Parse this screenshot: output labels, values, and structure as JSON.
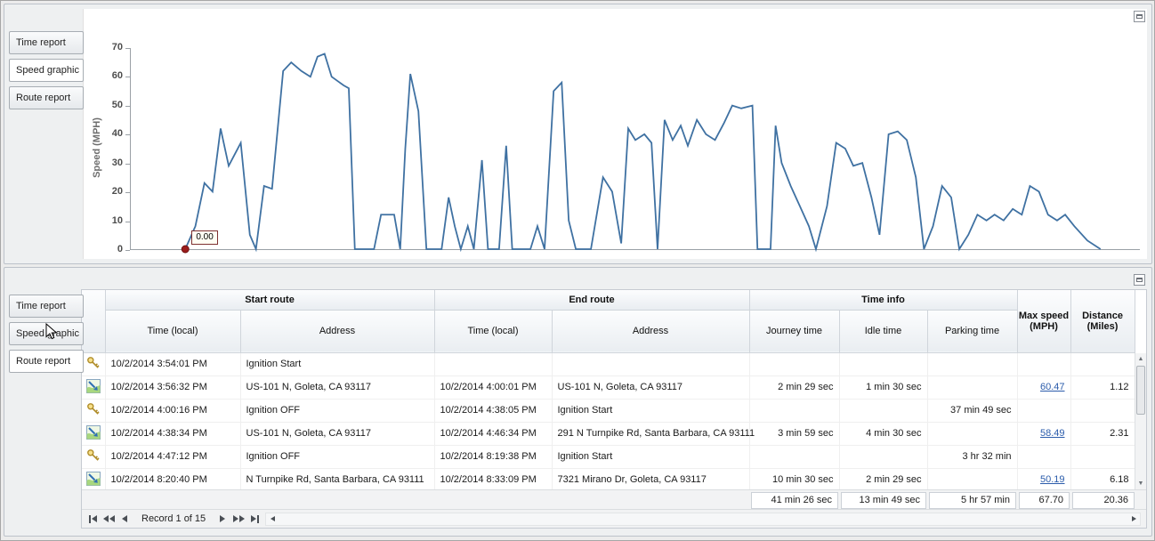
{
  "panels": {
    "top": {
      "tabs": [
        {
          "label": "Time report",
          "selected": false
        },
        {
          "label": "Speed graphic",
          "selected": true
        },
        {
          "label": "Route report",
          "selected": false
        }
      ]
    },
    "bottom": {
      "tabs": [
        {
          "label": "Time report",
          "selected": false
        },
        {
          "label": "Speed graphic",
          "selected": false
        },
        {
          "label": "Route report",
          "selected": true
        }
      ]
    }
  },
  "chart_data": {
    "type": "line",
    "title": "",
    "xlabel": "",
    "ylabel": "Speed (MPH)",
    "ylim": [
      0,
      70
    ],
    "yticks": [
      0,
      10,
      20,
      30,
      40,
      50,
      60,
      70
    ],
    "grid": false,
    "legend": "none",
    "line_color": "#3f71a2",
    "marker": {
      "x_frac": 0.054,
      "value": 0,
      "label": "0.00",
      "color": "#9b1c1c"
    },
    "points": [
      [
        0.054,
        0
      ],
      [
        0.064,
        8
      ],
      [
        0.073,
        23
      ],
      [
        0.081,
        20
      ],
      [
        0.089,
        42
      ],
      [
        0.097,
        29
      ],
      [
        0.103,
        33
      ],
      [
        0.109,
        37
      ],
      [
        0.118,
        5
      ],
      [
        0.124,
        0
      ],
      [
        0.132,
        22
      ],
      [
        0.14,
        21
      ],
      [
        0.151,
        62
      ],
      [
        0.159,
        65
      ],
      [
        0.169,
        62
      ],
      [
        0.178,
        60
      ],
      [
        0.185,
        67
      ],
      [
        0.192,
        68
      ],
      [
        0.199,
        60
      ],
      [
        0.211,
        57
      ],
      [
        0.216,
        56
      ],
      [
        0.222,
        0
      ],
      [
        0.241,
        0
      ],
      [
        0.248,
        12
      ],
      [
        0.261,
        12
      ],
      [
        0.267,
        0
      ],
      [
        0.272,
        35
      ],
      [
        0.277,
        61
      ],
      [
        0.285,
        48
      ],
      [
        0.293,
        0
      ],
      [
        0.308,
        0
      ],
      [
        0.315,
        18
      ],
      [
        0.321,
        8
      ],
      [
        0.327,
        0
      ],
      [
        0.334,
        8
      ],
      [
        0.34,
        0
      ],
      [
        0.348,
        31
      ],
      [
        0.354,
        0
      ],
      [
        0.365,
        0
      ],
      [
        0.372,
        36
      ],
      [
        0.378,
        0
      ],
      [
        0.396,
        0
      ],
      [
        0.403,
        8
      ],
      [
        0.41,
        0
      ],
      [
        0.419,
        55
      ],
      [
        0.427,
        58
      ],
      [
        0.434,
        10
      ],
      [
        0.441,
        0
      ],
      [
        0.456,
        0
      ],
      [
        0.468,
        25
      ],
      [
        0.477,
        20
      ],
      [
        0.486,
        2
      ],
      [
        0.493,
        42
      ],
      [
        0.5,
        38
      ],
      [
        0.509,
        40
      ],
      [
        0.516,
        37
      ],
      [
        0.522,
        0
      ],
      [
        0.529,
        45
      ],
      [
        0.537,
        38
      ],
      [
        0.545,
        43
      ],
      [
        0.552,
        36
      ],
      [
        0.561,
        45
      ],
      [
        0.57,
        40
      ],
      [
        0.579,
        38
      ],
      [
        0.588,
        44
      ],
      [
        0.596,
        50
      ],
      [
        0.605,
        49
      ],
      [
        0.616,
        50
      ],
      [
        0.621,
        0
      ],
      [
        0.634,
        0
      ],
      [
        0.639,
        43
      ],
      [
        0.645,
        30
      ],
      [
        0.654,
        22
      ],
      [
        0.663,
        15
      ],
      [
        0.672,
        8
      ],
      [
        0.679,
        0
      ],
      [
        0.69,
        15
      ],
      [
        0.699,
        37
      ],
      [
        0.708,
        35
      ],
      [
        0.716,
        29
      ],
      [
        0.725,
        30
      ],
      [
        0.734,
        18
      ],
      [
        0.742,
        5
      ],
      [
        0.751,
        40
      ],
      [
        0.76,
        41
      ],
      [
        0.769,
        38
      ],
      [
        0.778,
        25
      ],
      [
        0.786,
        0
      ],
      [
        0.795,
        8
      ],
      [
        0.804,
        22
      ],
      [
        0.813,
        18
      ],
      [
        0.821,
        0
      ],
      [
        0.83,
        5
      ],
      [
        0.839,
        12
      ],
      [
        0.848,
        10
      ],
      [
        0.856,
        12
      ],
      [
        0.865,
        10
      ],
      [
        0.874,
        14
      ],
      [
        0.883,
        12
      ],
      [
        0.891,
        22
      ],
      [
        0.9,
        20
      ],
      [
        0.909,
        12
      ],
      [
        0.918,
        10
      ],
      [
        0.926,
        12
      ],
      [
        0.935,
        8
      ],
      [
        0.948,
        3
      ],
      [
        0.961,
        0
      ]
    ]
  },
  "grid": {
    "groups": [
      {
        "label": "Start route",
        "span": 2
      },
      {
        "label": "End route",
        "span": 2
      },
      {
        "label": "Time info",
        "span": 3
      }
    ],
    "columns": [
      {
        "label": "Time (local)"
      },
      {
        "label": "Address"
      },
      {
        "label": "Time (local)"
      },
      {
        "label": "Address"
      },
      {
        "label": "Journey time"
      },
      {
        "label": "Idle time"
      },
      {
        "label": "Parking time"
      },
      {
        "label": "Max speed (MPH)"
      },
      {
        "label": "Distance (Miles)"
      }
    ],
    "rows": [
      {
        "icon": "ignition-key-icon",
        "start_time": "10/2/2014 3:54:01 PM",
        "start_address": "Ignition Start",
        "end_time": "",
        "end_address": "",
        "journey_time": "",
        "idle_time": "",
        "parking_time": "",
        "max_speed": "",
        "distance": ""
      },
      {
        "icon": "route-icon",
        "start_time": "10/2/2014 3:56:32 PM",
        "start_address": "US-101 N, Goleta, CA 93117",
        "end_time": "10/2/2014 4:00:01 PM",
        "end_address": "US-101 N, Goleta, CA 93117",
        "journey_time": "2 min 29 sec",
        "idle_time": "1 min 30 sec",
        "parking_time": "",
        "max_speed": "60.47",
        "distance": "1.12"
      },
      {
        "icon": "ignition-key-icon",
        "start_time": "10/2/2014 4:00:16 PM",
        "start_address": "Ignition OFF",
        "end_time": "10/2/2014 4:38:05 PM",
        "end_address": "Ignition Start",
        "journey_time": "",
        "idle_time": "",
        "parking_time": "37 min 49 sec",
        "max_speed": "",
        "distance": ""
      },
      {
        "icon": "route-icon",
        "start_time": "10/2/2014 4:38:34 PM",
        "start_address": "US-101 N, Goleta, CA 93117",
        "end_time": "10/2/2014 4:46:34 PM",
        "end_address": "291 N Turnpike Rd, Santa Barbara, CA 93111",
        "journey_time": "3 min 59 sec",
        "idle_time": "4 min 30 sec",
        "parking_time": "",
        "max_speed": "58.49",
        "distance": "2.31"
      },
      {
        "icon": "ignition-key-icon",
        "start_time": "10/2/2014 4:47:12 PM",
        "start_address": "Ignition OFF",
        "end_time": "10/2/2014 8:19:38 PM",
        "end_address": "Ignition Start",
        "journey_time": "",
        "idle_time": "",
        "parking_time": "3 hr 32 min",
        "max_speed": "",
        "distance": ""
      },
      {
        "icon": "route-icon",
        "start_time": "10/2/2014 8:20:40 PM",
        "start_address": "N Turnpike Rd, Santa Barbara, CA 93111",
        "end_time": "10/2/2014 8:33:09 PM",
        "end_address": "7321 Mirano Dr, Goleta, CA 93117",
        "journey_time": "10 min 30 sec",
        "idle_time": "2 min 29 sec",
        "parking_time": "",
        "max_speed": "50.19",
        "distance": "6.18"
      }
    ],
    "summary": {
      "journey_time": "41 min 26 sec",
      "idle_time": "13 min 49 sec",
      "parking_time": "5 hr 57 min",
      "max_speed": "67.70",
      "distance": "20.36"
    },
    "navigator": {
      "record_text": "Record 1 of 15"
    }
  },
  "icons": [
    "ignition-key-icon",
    "route-icon",
    "first-record-icon",
    "prev-page-icon",
    "prev-record-icon",
    "next-record-icon",
    "next-page-icon",
    "last-record-icon",
    "scroll-up-icon",
    "scroll-down-icon",
    "scroll-left-icon",
    "scroll-right-icon",
    "collapse-panel-icon",
    "mouse-cursor"
  ],
  "colors": {
    "chart_line": "#3f71a2",
    "marker": "#9b1c1c",
    "link": "#2b5cab"
  }
}
